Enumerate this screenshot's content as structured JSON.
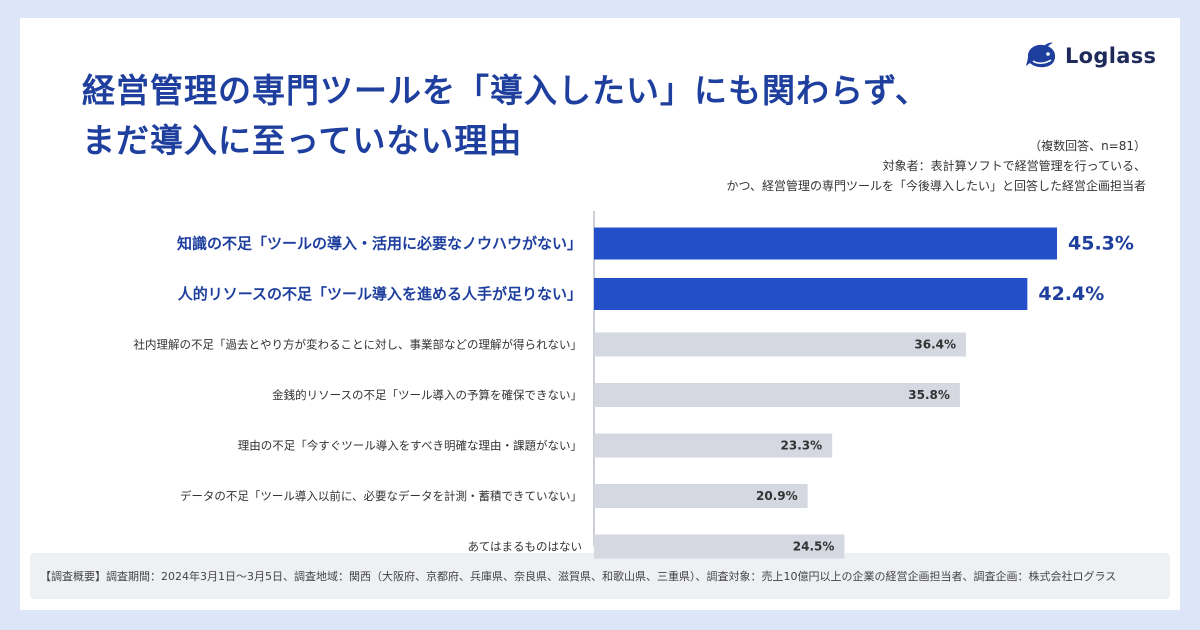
{
  "brand": {
    "name": "Loglass"
  },
  "title": {
    "line1": "経営管理の専門ツールを「導入したい」にも関わらず、",
    "line2": "まだ導入に至っていない理由"
  },
  "meta": {
    "note": "（複数回答、n=81）",
    "target_line1": "対象者：表計算ソフトで経営管理を行っている、",
    "target_line2": "かつ、経営管理の専門ツールを「今後導入したい」と回答した経営企画担当者"
  },
  "footer": {
    "text": "【調査概要】調査期間：2024年3月1日〜3月5日、調査地域：関西（大阪府、京都府、兵庫県、奈良県、滋賀県、和歌山県、三重県）、調査対象：売上10億円以上の企業の経営企画担当者、調査企画：株式会社ログラス"
  },
  "colors": {
    "highlight": "#2350c8",
    "muted_bar": "#d5d7e1",
    "title": "#1e3f9e",
    "background": "#dde5f8"
  },
  "chart_data": {
    "type": "bar",
    "orientation": "horizontal",
    "unit": "%",
    "categories": [
      "知識の不足「ツールの導入・活用に必要なノウハウがない」",
      "人的リソースの不足「ツール導入を進める人手が足りない」",
      "社内理解の不足「過去とやり方が変わることに対し、事業部などの理解が得られない」",
      "金銭的リソースの不足「ツール導入の予算を確保できない」",
      "理由の不足「今すぐツール導入をすべき明確な理由・課題がない」",
      "データの不足「ツール導入以前に、必要なデータを計測・蓄積できていない」",
      "あてはまるものはない"
    ],
    "values": [
      45.3,
      42.4,
      36.4,
      35.8,
      23.3,
      20.9,
      24.5
    ],
    "value_labels": [
      "45.3%",
      "42.4%",
      "36.4%",
      "35.8%",
      "23.3%",
      "20.9%",
      "24.5%"
    ],
    "highlighted": [
      true,
      true,
      false,
      false,
      false,
      false,
      false
    ],
    "xlim": [
      0,
      50
    ],
    "grid": false
  }
}
